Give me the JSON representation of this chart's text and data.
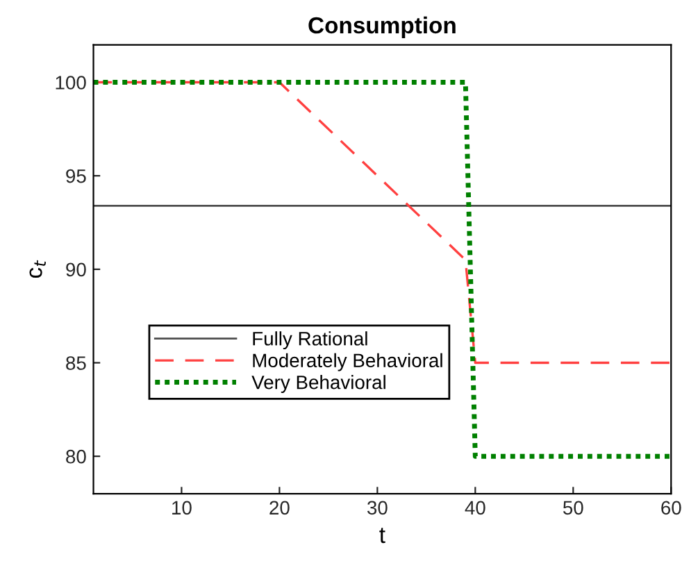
{
  "chart_data": {
    "type": "line",
    "title": "Consumption",
    "xlabel": "t",
    "ylabel": "c$_{t}$",
    "xlim": [
      1,
      60
    ],
    "ylim": [
      78,
      102
    ],
    "xticks": [
      10,
      20,
      30,
      40,
      50,
      60
    ],
    "yticks": [
      80,
      85,
      90,
      95,
      100
    ],
    "grid": false,
    "legend": "lower left",
    "series": [
      {
        "name": "Fully Rational",
        "color": "#4d4d4d",
        "line_style": "solid",
        "x": [
          1,
          60
        ],
        "values": [
          93.4,
          93.4
        ]
      },
      {
        "name": "Moderately Behavioral",
        "color": "#ff4040",
        "line_style": "dashed",
        "x": [
          1,
          20,
          39,
          40,
          60
        ],
        "values": [
          100,
          100,
          90.5,
          85,
          85
        ]
      },
      {
        "name": "Very Behavioral",
        "color": "#008000",
        "line_style": "dotted",
        "x": [
          1,
          39,
          40,
          60
        ],
        "values": [
          100,
          100,
          80,
          80
        ]
      }
    ]
  }
}
